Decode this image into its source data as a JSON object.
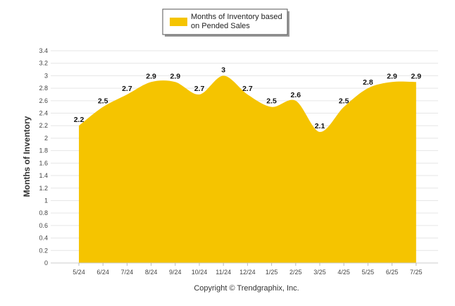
{
  "chart_data": {
    "type": "area",
    "categories": [
      "5/24",
      "6/24",
      "7/24",
      "8/24",
      "9/24",
      "10/24",
      "11/24",
      "12/24",
      "1/25",
      "2/25",
      "3/25",
      "4/25",
      "5/25",
      "6/25",
      "7/25"
    ],
    "series": [
      {
        "name_lines": [
          "Months of Inventory based",
          "on Pended Sales"
        ],
        "values": [
          2.2,
          2.5,
          2.7,
          2.9,
          2.9,
          2.7,
          3,
          2.7,
          2.5,
          2.6,
          2.1,
          2.5,
          2.8,
          2.9,
          2.9
        ],
        "color": "#F5C400"
      }
    ],
    "ylabel": "Months of Inventory",
    "ylim": [
      0,
      3.4
    ],
    "yticks": [
      "0",
      "0.2",
      "0.4",
      "0.6",
      "0.8",
      "1",
      "1.2",
      "1.4",
      "1.6",
      "1.8",
      "2",
      "2.2",
      "2.4",
      "2.6",
      "2.8",
      "3",
      "3.2",
      "3.4"
    ],
    "grid": true,
    "legend_position": "top"
  },
  "footer": {
    "copyright": "Copyright © Trendgraphix, Inc."
  }
}
